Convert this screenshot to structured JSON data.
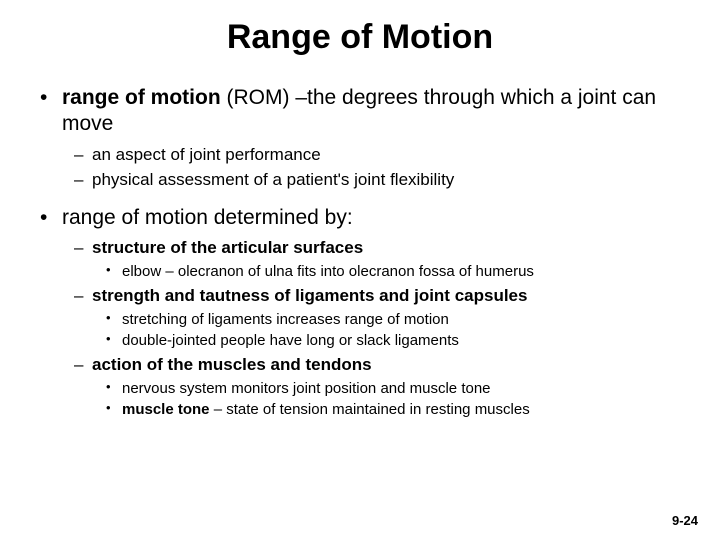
{
  "title": "Range of Motion",
  "footer": "9-24",
  "b1_term": "range of motion",
  "b1_rest": " (ROM) –the degrees through which a joint can move",
  "b1_s1": "an aspect of joint performance",
  "b1_s2": "physical assessment of a patient's joint flexibility",
  "b2": "range of motion determined by:",
  "b2_s1": "structure of the articular surfaces",
  "b2_s1_t1": "elbow – olecranon of ulna fits into olecranon fossa of humerus",
  "b2_s2": "strength and tautness of ligaments and joint capsules",
  "b2_s2_t1": "stretching of ligaments increases range of motion",
  "b2_s2_t2": "double-jointed people have long or slack ligaments",
  "b2_s3": "action of the muscles and tendons",
  "b2_s3_t1": "nervous system monitors joint position and muscle tone",
  "b2_s3_t2a": "muscle tone",
  "b2_s3_t2b": " – state of tension maintained in resting muscles"
}
